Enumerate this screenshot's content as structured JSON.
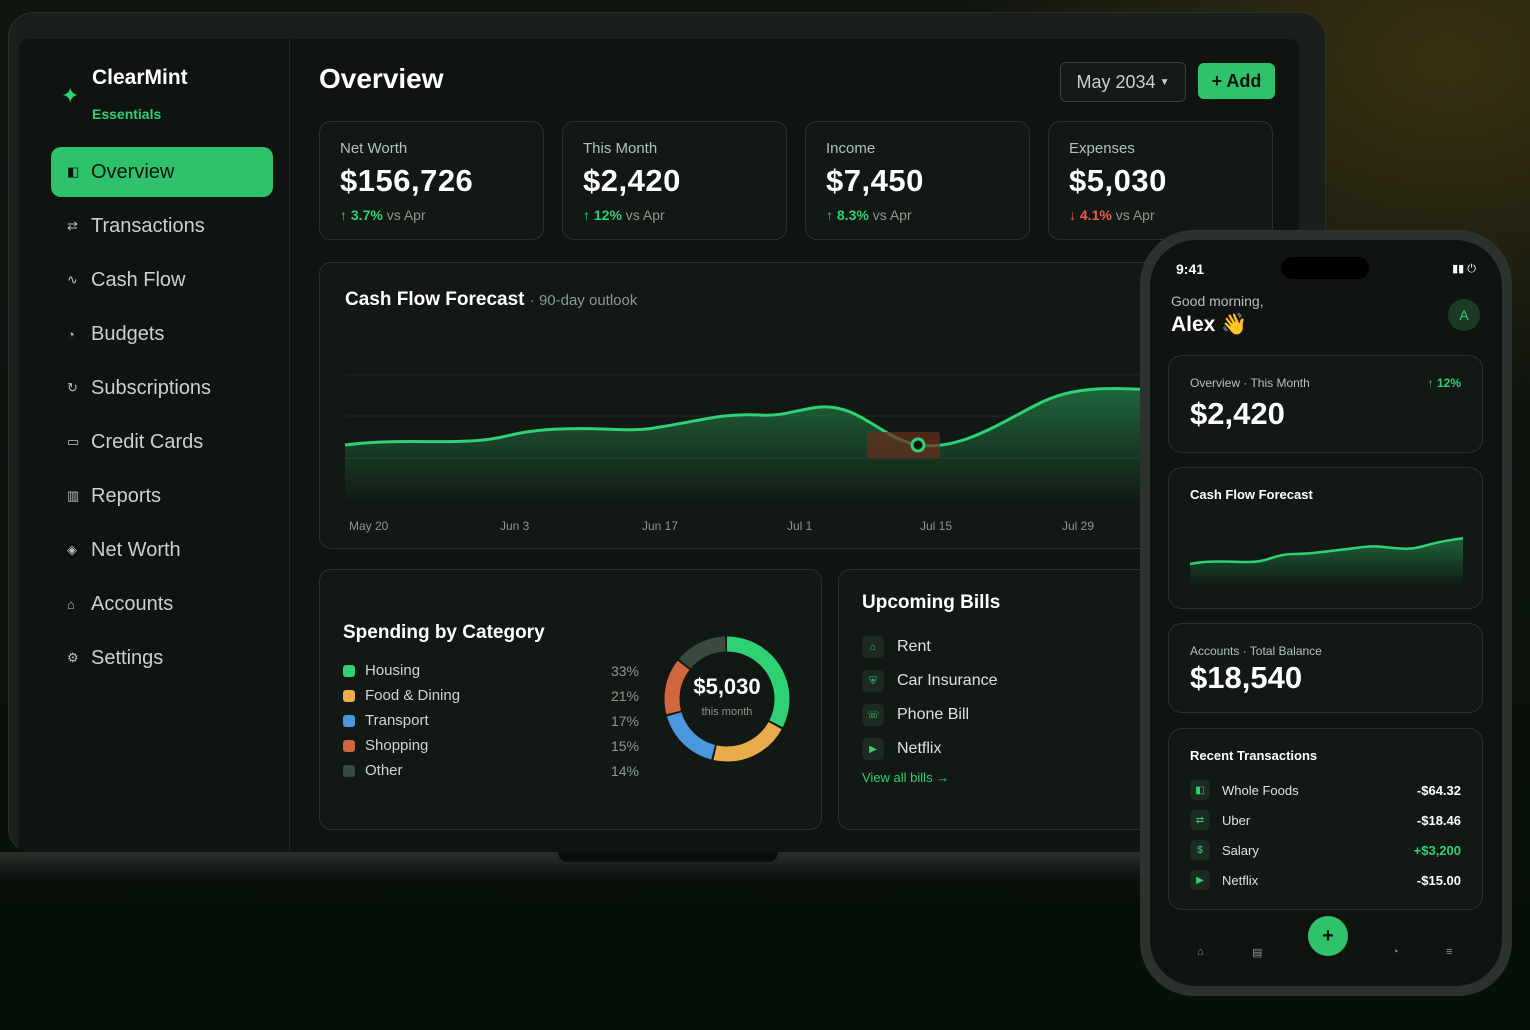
{
  "brand": {
    "name": "ClearMint",
    "plan": "Essentials"
  },
  "sidebar": {
    "items": [
      {
        "label": "Overview",
        "icon": "overview-icon",
        "glyph": "◧",
        "active": true
      },
      {
        "label": "Transactions",
        "icon": "transactions-icon",
        "glyph": "⇄"
      },
      {
        "label": "Cash Flow",
        "icon": "cash-flow-icon",
        "glyph": "∿"
      },
      {
        "label": "Budgets",
        "icon": "budgets-icon",
        "glyph": "◔"
      },
      {
        "label": "Subscriptions",
        "icon": "subscriptions-icon",
        "glyph": "↻"
      },
      {
        "label": "Credit Cards",
        "icon": "credit-card-icon",
        "glyph": "▭"
      },
      {
        "label": "Reports",
        "icon": "reports-icon",
        "glyph": "▥"
      },
      {
        "label": "Net Worth",
        "icon": "net-worth-icon",
        "glyph": "◈"
      },
      {
        "label": "Accounts",
        "icon": "accounts-icon",
        "glyph": "⌂"
      },
      {
        "label": "Settings",
        "icon": "settings-icon",
        "glyph": "⚙"
      }
    ]
  },
  "header": {
    "title": "Overview",
    "month": "May 2034",
    "add_label": "+ Add"
  },
  "stats": [
    {
      "label": "Net Worth",
      "value": "$156,726",
      "change": "↑ 3.7%",
      "suffix": " vs Apr",
      "direction": "up"
    },
    {
      "label": "This Month",
      "value": "$2,420",
      "change": "↑ 12%",
      "suffix": " vs Apr",
      "direction": "up"
    },
    {
      "label": "Income",
      "value": "$7,450",
      "change": "↑ 8.3%",
      "suffix": " vs Apr",
      "direction": "up"
    },
    {
      "label": "Expenses",
      "value": "$5,030",
      "change": "↓ 4.1%",
      "suffix": " vs Apr",
      "direction": "down"
    }
  ],
  "forecast": {
    "title": "Cash Flow Forecast",
    "subtitle": "· 90-day outlook",
    "x_labels": [
      "May 20",
      "Jun 3",
      "Jun 17",
      "Jul 1",
      "Jul 15",
      "Jul 29"
    ]
  },
  "spending": {
    "title": "Spending by Category",
    "total": "$5,030",
    "total_caption": "this month",
    "categories": [
      {
        "name": "Housing",
        "pct": "33%",
        "value": 33,
        "color": "#2fd175"
      },
      {
        "name": "Food & Dining",
        "pct": "21%",
        "value": 21,
        "color": "#e8ad4a"
      },
      {
        "name": "Transport",
        "pct": "17%",
        "value": 17,
        "color": "#4a97e0"
      },
      {
        "name": "Shopping",
        "pct": "15%",
        "value": 15,
        "color": "#d1663f"
      },
      {
        "name": "Other",
        "pct": "14%",
        "value": 14,
        "color": "#3a4a3f"
      }
    ]
  },
  "bills": {
    "title": "Upcoming Bills",
    "items": [
      {
        "name": "Rent",
        "icon": "home-icon",
        "glyph": "⌂"
      },
      {
        "name": "Car Insurance",
        "icon": "shield-icon",
        "glyph": "⛨"
      },
      {
        "name": "Phone Bill",
        "icon": "phone-icon",
        "glyph": "☏"
      },
      {
        "name": "Netflix",
        "icon": "play-icon",
        "glyph": "▶"
      }
    ],
    "link": "View all bills →"
  },
  "phone": {
    "time": "9:41",
    "status": "▮▮ ⏻",
    "greeting": "Good morning,",
    "name": "Alex 👋",
    "avatar": "A",
    "overview": {
      "label": "Overview · This Month",
      "change": "↑ 12%",
      "value": "$2,420"
    },
    "forecast_title": "Cash Flow Forecast",
    "accounts": {
      "label": "Accounts · Total Balance",
      "value": "$18,540"
    },
    "recent": {
      "title": "Recent Transactions",
      "items": [
        {
          "name": "Whole Foods",
          "amount": "-$64.32",
          "glyph": "◧",
          "positive": false
        },
        {
          "name": "Uber",
          "amount": "-$18.46",
          "glyph": "⇄",
          "positive": false
        },
        {
          "name": "Salary",
          "amount": "+$3,200",
          "glyph": "$",
          "positive": true
        },
        {
          "name": "Netflix",
          "amount": "-$15.00",
          "glyph": "▶",
          "positive": false
        }
      ]
    },
    "tabs": [
      {
        "glyph": "⌂",
        "icon": "home-tab-icon"
      },
      {
        "glyph": "▤",
        "icon": "list-tab-icon"
      },
      {
        "glyph": "◔",
        "icon": "budget-tab-icon"
      },
      {
        "glyph": "≡",
        "icon": "menu-tab-icon"
      }
    ],
    "fab": "+"
  }
}
